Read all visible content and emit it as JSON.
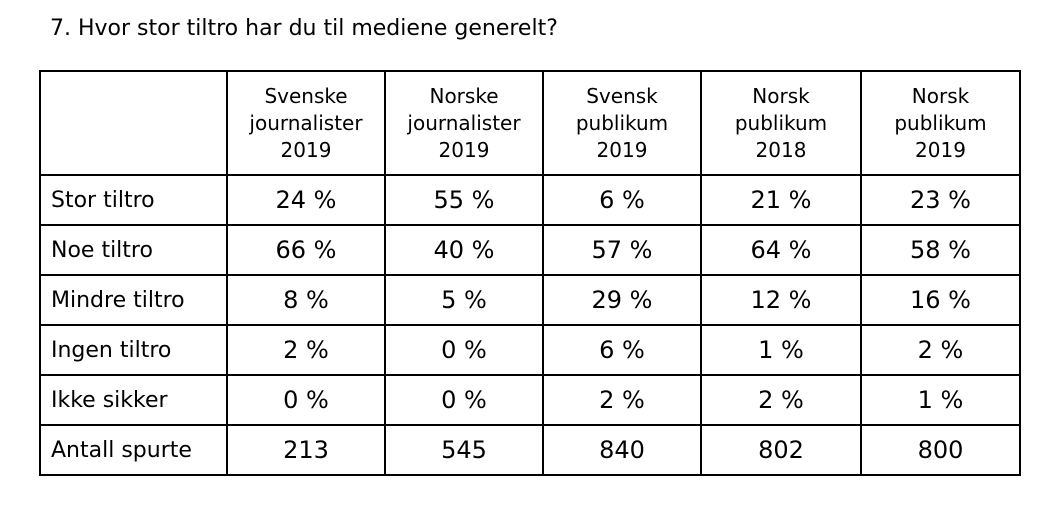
{
  "question": "7. Hvor stor tiltro har du til mediene generelt?",
  "table": {
    "corner": "",
    "columns": [
      [
        "Svenske",
        "journalister",
        "2019"
      ],
      [
        "Norske",
        "journalister",
        "2019"
      ],
      [
        "Svensk",
        "publikum",
        "2019"
      ],
      [
        "Norsk",
        "publikum",
        "2018"
      ],
      [
        "Norsk",
        "publikum",
        "2019"
      ]
    ],
    "rows": [
      {
        "label": "Stor tiltro",
        "values": [
          "24 %",
          "55 %",
          "6 %",
          "21 %",
          "23 %"
        ]
      },
      {
        "label": "Noe tiltro",
        "values": [
          "66 %",
          "40 %",
          "57 %",
          "64 %",
          "58 %"
        ]
      },
      {
        "label": "Mindre tiltro",
        "values": [
          "8 %",
          "5 %",
          "29 %",
          "12 %",
          "16 %"
        ]
      },
      {
        "label": "Ingen tiltro",
        "values": [
          "2 %",
          "0 %",
          "6 %",
          "1 %",
          "2 %"
        ]
      },
      {
        "label": "Ikke sikker",
        "values": [
          "0 %",
          "0 %",
          "2 %",
          "2 %",
          "1 %"
        ]
      },
      {
        "label": "Antall spurte",
        "values": [
          "213",
          "545",
          "840",
          "802",
          "800"
        ]
      }
    ]
  }
}
